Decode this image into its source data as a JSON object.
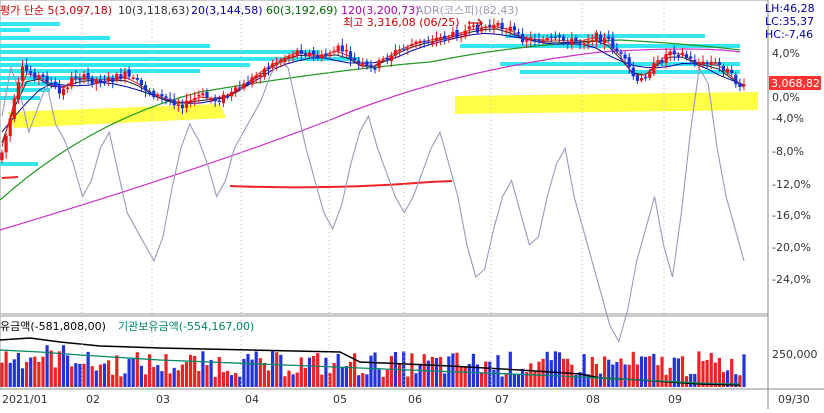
{
  "chart_data": [
    {
      "type": "candlestick",
      "legend": [
        {
          "text": "평가 단순 5(3,097,18)",
          "color": "#cc0000"
        },
        {
          "text": "10(3,118,63)",
          "color": "#333333"
        },
        {
          "text": "20(3,144,58)",
          "color": "#0000aa"
        },
        {
          "text": "60(3,192,69)",
          "color": "#006600"
        },
        {
          "text": "120(3,200,73)",
          "color": "#aa00aa"
        },
        {
          "text": "ADR(코스피)(82,43)",
          "color": "#9999bb"
        }
      ],
      "top_right": [
        "LH:46,28",
        "LC:35,37",
        "HC:-7,46"
      ],
      "annotation_high": "최고 3,316,08 (06/25)",
      "current_price_label": "3,068,82",
      "y_ticks": [
        "4,0%",
        "0,0%",
        "-4,0%",
        "-8,0%",
        "-12,0%",
        "-16,0%",
        "-20,0%",
        "-24,0%"
      ],
      "x_ticks": [
        "2021/01",
        "02",
        "03",
        "04",
        "05",
        "06",
        "07",
        "08",
        "09"
      ],
      "x_end_label": "09/30",
      "series": [
        {
          "name": "5",
          "color": "#cc0000"
        },
        {
          "name": "10",
          "color": "#333333"
        },
        {
          "name": "20",
          "color": "#0000aa"
        },
        {
          "name": "60",
          "color": "#006600"
        },
        {
          "name": "120",
          "color": "#aa00aa"
        },
        {
          "name": "ADR",
          "color": "#9999bb",
          "values": [
            -2,
            4,
            1,
            -4,
            -1,
            2,
            -3,
            -5,
            -8,
            -12,
            -10,
            -6,
            -4,
            -9,
            -14,
            -16,
            -18,
            -20,
            -17,
            -11,
            -6,
            -3,
            -5,
            -8,
            -12,
            -10,
            -6,
            -4,
            -2,
            0,
            3,
            5,
            4,
            -1,
            -6,
            -10,
            -14,
            -16,
            -13,
            -8,
            -4,
            -2,
            -6,
            -9,
            -12,
            -14,
            -12,
            -9,
            -6,
            -4,
            -8,
            -12,
            -18,
            -22,
            -21,
            -16,
            -12,
            -10,
            -14,
            -18,
            -17,
            -12,
            -8,
            -6,
            -12,
            -16,
            -20,
            -24,
            -28,
            -30,
            -26,
            -20,
            -16,
            -12,
            -18,
            -22,
            -14,
            -4,
            4,
            2,
            -6,
            -12,
            -16,
            -20
          ]
        }
      ]
    },
    {
      "type": "bar",
      "legend": [
        {
          "text": "유금액(-581,808,00)",
          "color": "#000000"
        },
        {
          "text": "기관보유금액(-554,167,00)",
          "color": "#008866"
        }
      ],
      "y_ticks": [
        "250,000"
      ]
    }
  ]
}
